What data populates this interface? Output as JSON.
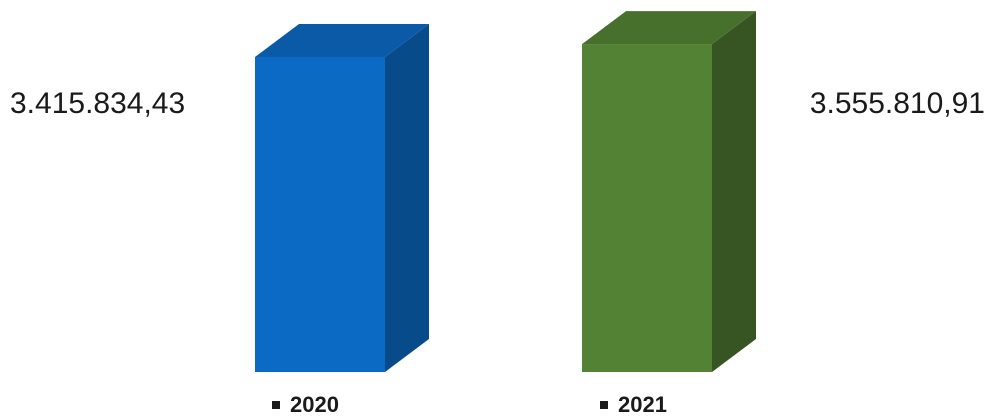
{
  "chart_data": {
    "type": "bar",
    "categories": [
      "2020",
      "2021"
    ],
    "values": [
      3415834.43,
      3555810.91
    ],
    "value_labels": [
      "3.415.834,43",
      "3.555.810,91"
    ],
    "colors": {
      "2020": {
        "front": "#0a6ac4",
        "side": "#074b8a",
        "top": "#0a5aa8"
      },
      "2021": {
        "front": "#548235",
        "side": "#365523",
        "top": "#46702c"
      }
    },
    "ylim": [
      0,
      3600000
    ],
    "legend_placement": "bottom",
    "grid": false,
    "three_d": true
  }
}
